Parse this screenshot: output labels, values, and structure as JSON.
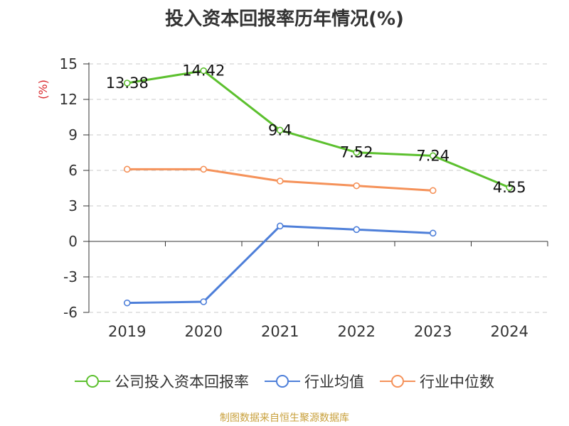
{
  "title": "投入资本回报率历年情况(%)",
  "source": "制图数据来自恒生聚源数据库",
  "colors": {
    "company": "#5cc02e",
    "industry_avg": "#4e7fd9",
    "industry_median": "#f5925a",
    "axis_label": "#d9262b",
    "grid": "#c8c8c8",
    "axis": "#333333",
    "source": "#c8a03c"
  },
  "chart_data": {
    "type": "line",
    "title": "投入资本回报率历年情况(%)",
    "ylabel": "(%)",
    "xlabel": "",
    "categories": [
      "2019",
      "2020",
      "2021",
      "2022",
      "2023",
      "2024"
    ],
    "ylim": [
      -6,
      15
    ],
    "yticks": [
      "15",
      "12",
      "9",
      "6",
      "3",
      "0",
      "-3",
      "-6"
    ],
    "grid": "horizontal dashed",
    "legend_position": "bottom",
    "series": [
      {
        "name": "公司投入资本回报率",
        "values": [
          13.38,
          14.42,
          9.4,
          7.52,
          7.24,
          4.55
        ],
        "labels": [
          "13.38",
          "14.42",
          "9.4",
          "7.52",
          "7.24",
          "4.55"
        ]
      },
      {
        "name": "行业均值",
        "values": [
          -5.2,
          -5.1,
          1.3,
          1.0,
          0.7,
          null
        ]
      },
      {
        "name": "行业中位数",
        "values": [
          6.1,
          6.1,
          5.1,
          4.7,
          4.3,
          null
        ]
      }
    ]
  }
}
